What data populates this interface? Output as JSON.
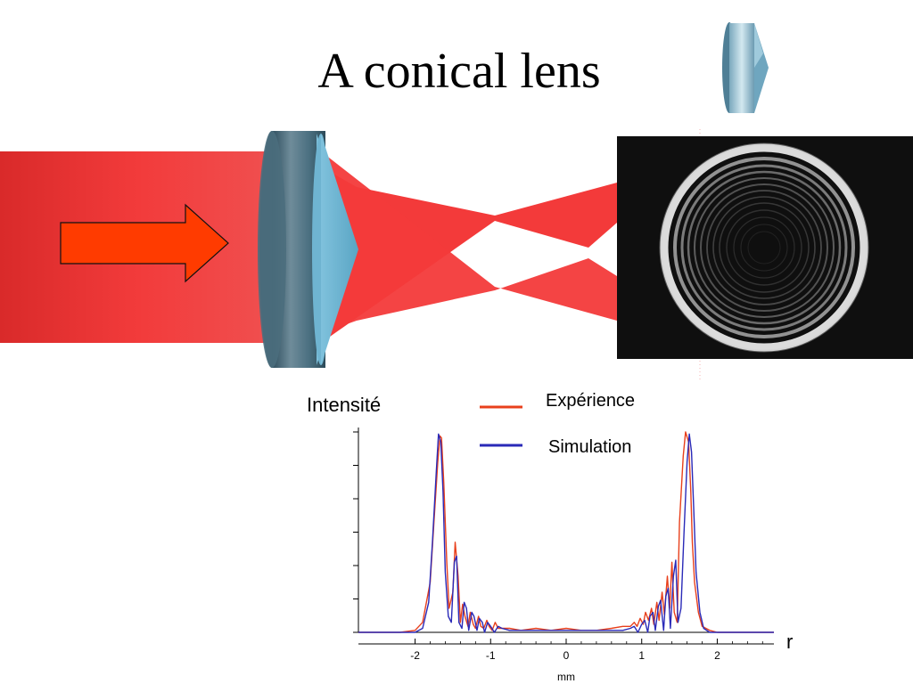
{
  "slide": {
    "title": "A conical lens"
  },
  "chart_data": {
    "type": "line",
    "title": "",
    "ylabel": "Intensité",
    "xlabel": "mm",
    "axis_end_label": "r",
    "xlim": [
      -2.75,
      2.75
    ],
    "ylim": [
      0,
      1.0
    ],
    "x_ticks": [
      -2,
      -1,
      0,
      1,
      2
    ],
    "grid": false,
    "legend_position": "top-right",
    "series": [
      {
        "name": "Expérience",
        "color": "#e8401c",
        "x": [
          -2.75,
          -2.2,
          -2.0,
          -1.9,
          -1.8,
          -1.75,
          -1.7,
          -1.67,
          -1.65,
          -1.62,
          -1.58,
          -1.55,
          -1.5,
          -1.47,
          -1.43,
          -1.4,
          -1.37,
          -1.34,
          -1.3,
          -1.27,
          -1.23,
          -1.2,
          -1.16,
          -1.13,
          -1.09,
          -1.05,
          -1.02,
          -0.98,
          -0.94,
          -0.9,
          -0.85,
          -0.75,
          -0.6,
          -0.4,
          -0.2,
          0.0,
          0.2,
          0.4,
          0.6,
          0.75,
          0.85,
          0.9,
          0.94,
          0.98,
          1.02,
          1.05,
          1.09,
          1.13,
          1.16,
          1.2,
          1.23,
          1.27,
          1.3,
          1.34,
          1.37,
          1.4,
          1.43,
          1.47,
          1.5,
          1.55,
          1.58,
          1.62,
          1.65,
          1.67,
          1.7,
          1.75,
          1.8,
          1.9,
          2.0,
          2.2,
          2.75
        ],
        "y": [
          0.0,
          0.0,
          0.01,
          0.05,
          0.25,
          0.55,
          0.85,
          0.98,
          0.97,
          0.75,
          0.35,
          0.12,
          0.2,
          0.45,
          0.28,
          0.05,
          0.14,
          0.08,
          0.03,
          0.1,
          0.04,
          0.02,
          0.08,
          0.03,
          0.02,
          0.06,
          0.03,
          0.01,
          0.05,
          0.02,
          0.02,
          0.02,
          0.01,
          0.02,
          0.01,
          0.02,
          0.01,
          0.01,
          0.02,
          0.03,
          0.03,
          0.05,
          0.03,
          0.07,
          0.04,
          0.1,
          0.06,
          0.12,
          0.04,
          0.15,
          0.06,
          0.2,
          0.09,
          0.28,
          0.12,
          0.35,
          0.1,
          0.05,
          0.55,
          0.88,
          1.0,
          0.95,
          0.7,
          0.45,
          0.25,
          0.1,
          0.03,
          0.01,
          0.0,
          0.0,
          0.0
        ]
      },
      {
        "name": "Simulation",
        "color": "#2a2ab8",
        "x": [
          -2.75,
          -2.2,
          -2.0,
          -1.9,
          -1.82,
          -1.77,
          -1.72,
          -1.69,
          -1.66,
          -1.63,
          -1.6,
          -1.56,
          -1.52,
          -1.48,
          -1.45,
          -1.42,
          -1.38,
          -1.35,
          -1.32,
          -1.29,
          -1.25,
          -1.22,
          -1.18,
          -1.15,
          -1.11,
          -1.08,
          -1.04,
          -1.0,
          -0.95,
          -0.9,
          -0.85,
          -0.75,
          -0.6,
          -0.4,
          -0.2,
          0.0,
          0.2,
          0.4,
          0.6,
          0.75,
          0.85,
          0.9,
          0.95,
          1.0,
          1.04,
          1.08,
          1.11,
          1.15,
          1.18,
          1.22,
          1.25,
          1.29,
          1.32,
          1.35,
          1.38,
          1.42,
          1.45,
          1.48,
          1.52,
          1.56,
          1.6,
          1.63,
          1.66,
          1.69,
          1.72,
          1.77,
          1.82,
          1.9,
          2.0,
          2.2,
          2.75
        ],
        "y": [
          0.0,
          0.0,
          0.0,
          0.02,
          0.15,
          0.45,
          0.8,
          0.99,
          0.95,
          0.7,
          0.3,
          0.08,
          0.05,
          0.35,
          0.38,
          0.05,
          0.02,
          0.15,
          0.12,
          0.01,
          0.1,
          0.08,
          0.01,
          0.07,
          0.05,
          0.0,
          0.05,
          0.03,
          0.0,
          0.03,
          0.02,
          0.01,
          0.01,
          0.01,
          0.01,
          0.01,
          0.01,
          0.01,
          0.01,
          0.01,
          0.02,
          0.03,
          0.0,
          0.04,
          0.06,
          0.0,
          0.08,
          0.1,
          0.01,
          0.13,
          0.16,
          0.01,
          0.18,
          0.22,
          0.02,
          0.28,
          0.36,
          0.05,
          0.12,
          0.5,
          0.85,
          0.99,
          0.9,
          0.6,
          0.3,
          0.1,
          0.02,
          0.0,
          0.0,
          0.0,
          0.0
        ]
      }
    ]
  },
  "colors": {
    "beam": "#f03030",
    "arrow": "#ff3b00",
    "lens": "#5d9bb5",
    "photo_background": "#0f0f0f"
  }
}
